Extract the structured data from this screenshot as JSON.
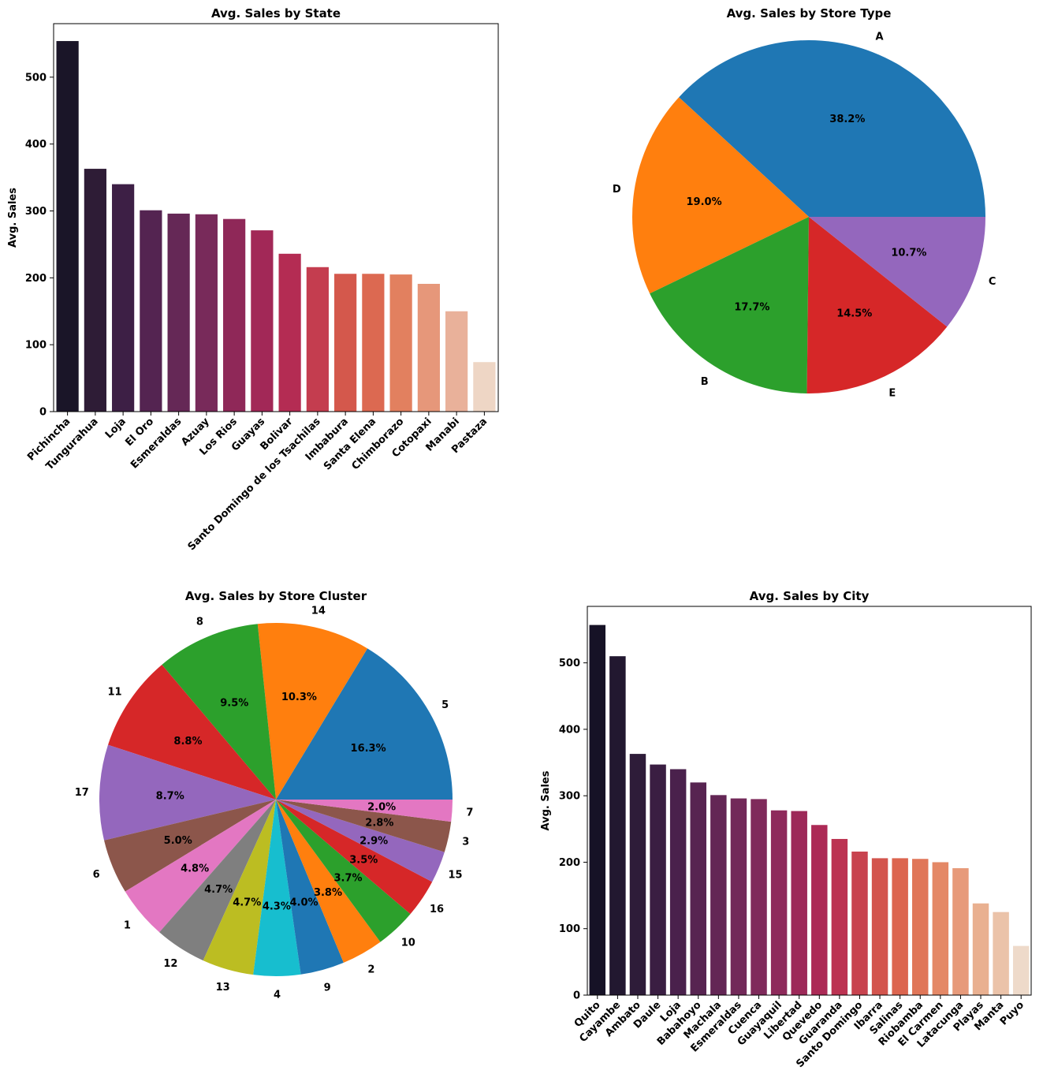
{
  "chart_data": [
    {
      "id": "state",
      "type": "bar",
      "title": "Avg. Sales by State",
      "xlabel": "",
      "ylabel": "Avg. Sales",
      "ylim": [
        0,
        580
      ],
      "yticks": [
        0,
        100,
        200,
        300,
        400,
        500
      ],
      "categories": [
        "Pichincha",
        "Tungurahua",
        "Loja",
        "El Oro",
        "Esmeraldas",
        "Azuay",
        "Los Rios",
        "Guayas",
        "Bolivar",
        "Santo Domingo de los Tsachilas",
        "Imbabura",
        "Santa Elena",
        "Chimborazo",
        "Cotopaxi",
        "Manabi",
        "Pastaza"
      ],
      "values": [
        554,
        363,
        340,
        301,
        296,
        295,
        288,
        271,
        236,
        216,
        206,
        206,
        205,
        191,
        150,
        74
      ],
      "colors": [
        "#1a1528",
        "#2e1c36",
        "#3d1f45",
        "#542451",
        "#652856",
        "#782a5a",
        "#8f2858",
        "#a22857",
        "#b42c53",
        "#c43d4f",
        "#d4584c",
        "#dc6951",
        "#e2805f",
        "#e6977a",
        "#e9b19a",
        "#eed6c5"
      ]
    },
    {
      "id": "store_type",
      "type": "pie",
      "title": "Avg. Sales by Store Type",
      "labels": [
        "A",
        "D",
        "B",
        "E",
        "C"
      ],
      "values": [
        38.2,
        19.0,
        17.7,
        14.5,
        10.7
      ],
      "pct_labels": [
        "38.2%",
        "19.0%",
        "17.7%",
        "14.5%",
        "10.7%"
      ],
      "colors": [
        "#1f77b4",
        "#ff7f0e",
        "#2ca02c",
        "#d62728",
        "#9467bd"
      ]
    },
    {
      "id": "cluster",
      "type": "pie",
      "title": "Avg. Sales by Store Cluster",
      "labels": [
        "5",
        "14",
        "8",
        "11",
        "17",
        "6",
        "1",
        "12",
        "13",
        "4",
        "9",
        "2",
        "10",
        "16",
        "15",
        "3",
        "7"
      ],
      "values": [
        16.3,
        10.3,
        9.5,
        8.8,
        8.7,
        5.0,
        4.8,
        4.7,
        4.7,
        4.3,
        4.0,
        3.8,
        3.7,
        3.5,
        2.9,
        2.8,
        2.0
      ],
      "pct_labels": [
        "16.3%",
        "10.3%",
        "9.5%",
        "8.8%",
        "8.7%",
        "5.0%",
        "4.8%",
        "4.7%",
        "4.7%",
        "4.3%",
        "4.0%",
        "3.8%",
        "3.7%",
        "3.5%",
        "2.9%",
        "2.8%",
        "2.0%"
      ],
      "colors": [
        "#1f77b4",
        "#ff7f0e",
        "#2ca02c",
        "#d62728",
        "#9467bd",
        "#8c564b",
        "#e377c2",
        "#7f7f7f",
        "#bcbd22",
        "#17becf",
        "#1f77b4",
        "#ff7f0e",
        "#2ca02c",
        "#d62728",
        "#9467bd",
        "#8c564b",
        "#e377c2"
      ]
    },
    {
      "id": "city",
      "type": "bar",
      "title": "Avg. Sales by City",
      "xlabel": "",
      "ylabel": "Avg. Sales",
      "ylim": [
        0,
        585
      ],
      "yticks": [
        0,
        100,
        200,
        300,
        400,
        500
      ],
      "categories": [
        "Quito",
        "Cayambe",
        "Ambato",
        "Daule",
        "Loja",
        "Babahoyo",
        "Machala",
        "Esmeraldas",
        "Cuenca",
        "Guayaquil",
        "Libertad",
        "Quevedo",
        "Guaranda",
        "Santo Domingo",
        "Ibarra",
        "Salinas",
        "Riobamba",
        "El Carmen",
        "Latacunga",
        "Playas",
        "Manta",
        "Puyo"
      ],
      "values": [
        557,
        510,
        363,
        347,
        340,
        320,
        301,
        296,
        295,
        278,
        277,
        256,
        235,
        216,
        206,
        206,
        205,
        200,
        191,
        138,
        125,
        74
      ],
      "colors": [
        "#161226",
        "#221830",
        "#2e1c39",
        "#3a1e42",
        "#4a214c",
        "#572451",
        "#632655",
        "#722959",
        "#7f2a5b",
        "#8e2a5b",
        "#9d2959",
        "#ac2a56",
        "#bc3352",
        "#c8434f",
        "#d3544d",
        "#dc654f",
        "#e07658",
        "#e48866",
        "#e79a7a",
        "#e9b090",
        "#ebc3a9",
        "#eedaca"
      ]
    }
  ]
}
